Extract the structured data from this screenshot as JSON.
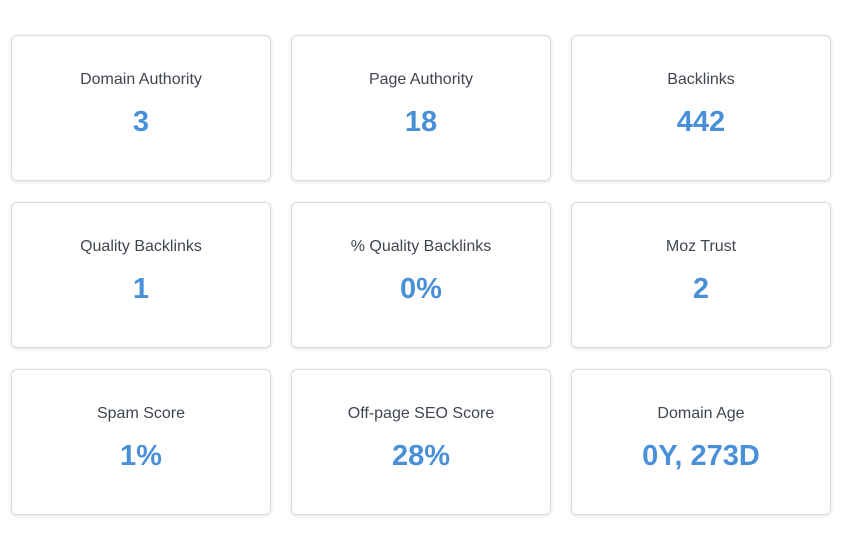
{
  "colors": {
    "value": "#4a90d9",
    "label": "#3f4650",
    "card_border": "#dcdcdc",
    "background": "#ffffff"
  },
  "metrics": [
    {
      "label": "Domain Authority",
      "value": "3"
    },
    {
      "label": "Page Authority",
      "value": "18"
    },
    {
      "label": "Backlinks",
      "value": "442"
    },
    {
      "label": "Quality Backlinks",
      "value": "1"
    },
    {
      "label": "% Quality Backlinks",
      "value": "0%"
    },
    {
      "label": "Moz Trust",
      "value": "2"
    },
    {
      "label": "Spam Score",
      "value": "1%"
    },
    {
      "label": "Off-page SEO Score",
      "value": "28%"
    },
    {
      "label": "Domain Age",
      "value": "0Y, 273D"
    }
  ]
}
